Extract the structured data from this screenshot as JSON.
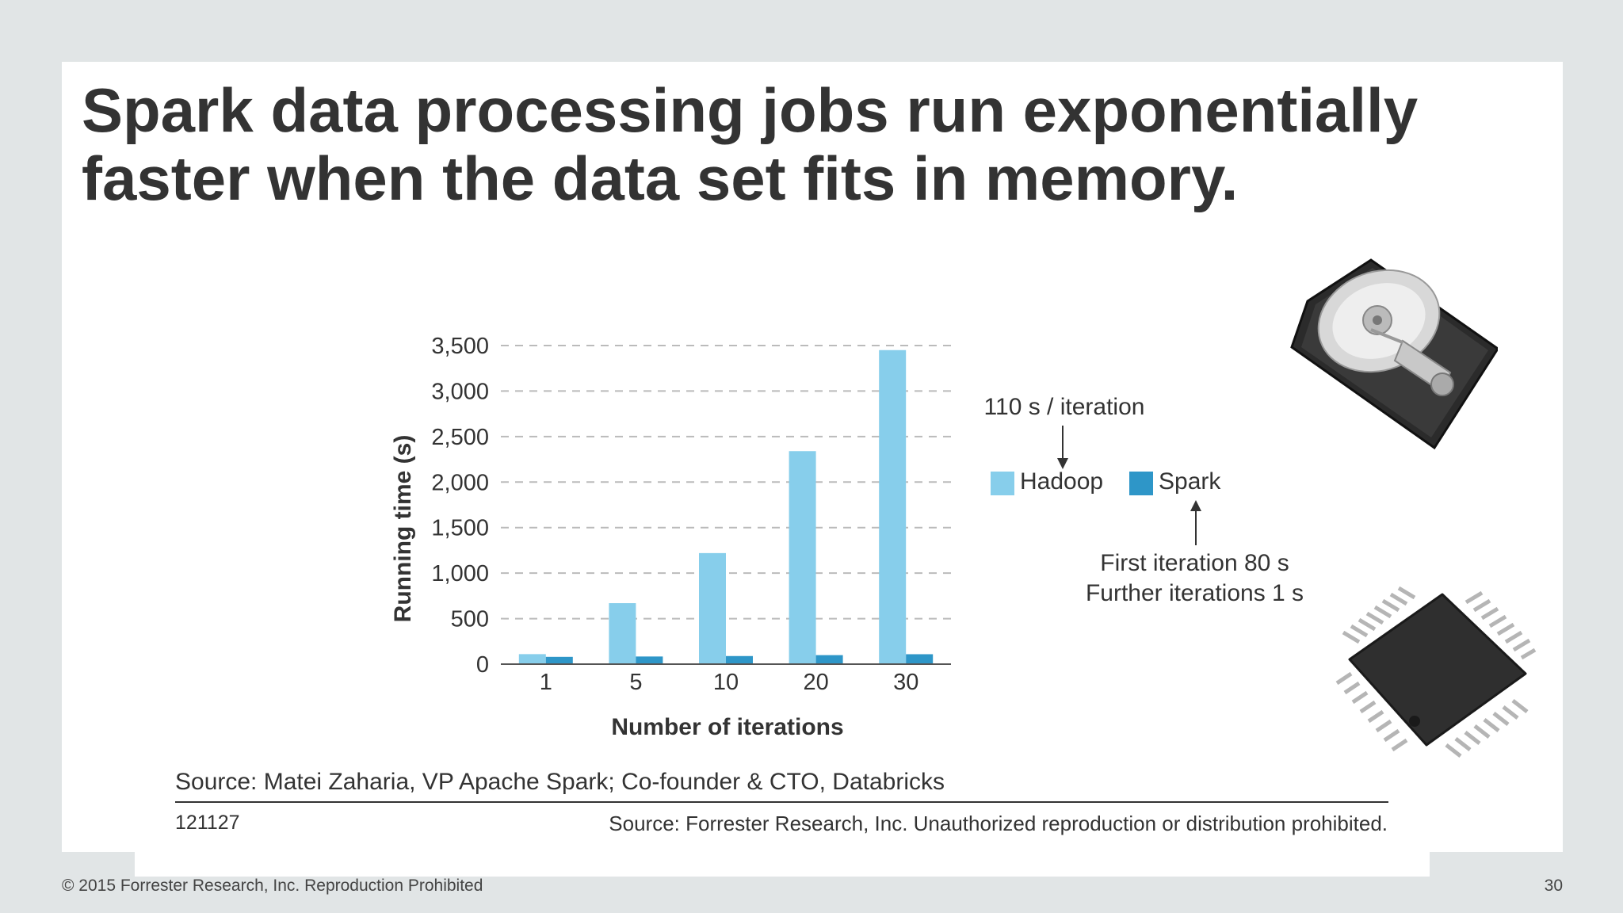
{
  "slide": {
    "title_line1": "Spark data processing jobs run exponentially",
    "title_line2": "faster when the data set fits in memory.",
    "source": "Source: Matei Zaharia, VP Apache Spark; Co-founder & CTO, Databricks",
    "figure_id": "121127",
    "source_notice": "Source: Forrester Research, Inc. Unauthorized reproduction or distribution prohibited.",
    "copyright": "© 2015 Forrester Research, Inc. Reproduction Prohibited",
    "page_number": "30"
  },
  "annotations": {
    "hadoop_note": "110 s / iteration",
    "spark_note_line1": "First iteration 80 s",
    "spark_note_line2": "Further iterations 1 s"
  },
  "images": {
    "hard_drive": "hard-disk-drive",
    "chip": "memory-chip"
  },
  "colors": {
    "hadoop": "#87ceeb",
    "spark": "#2e96c8",
    "text": "#333333",
    "grid": "#bbbbbb"
  },
  "chart_data": {
    "type": "bar",
    "categories": [
      "1",
      "5",
      "10",
      "20",
      "30"
    ],
    "series": [
      {
        "name": "Hadoop",
        "values": [
          110,
          670,
          1220,
          2340,
          3450
        ]
      },
      {
        "name": "Spark",
        "values": [
          80,
          84,
          89,
          99,
          109
        ]
      }
    ],
    "xlabel": "Number of iterations",
    "ylabel": "Running time (s)",
    "ylim": [
      0,
      3500
    ],
    "yticks": [
      "0",
      "500",
      "1,000",
      "1,500",
      "2,000",
      "2,500",
      "3,000",
      "3,500"
    ],
    "ytick_values": [
      0,
      500,
      1000,
      1500,
      2000,
      2500,
      3000,
      3500
    ],
    "grid": true,
    "legend_position": "right"
  }
}
